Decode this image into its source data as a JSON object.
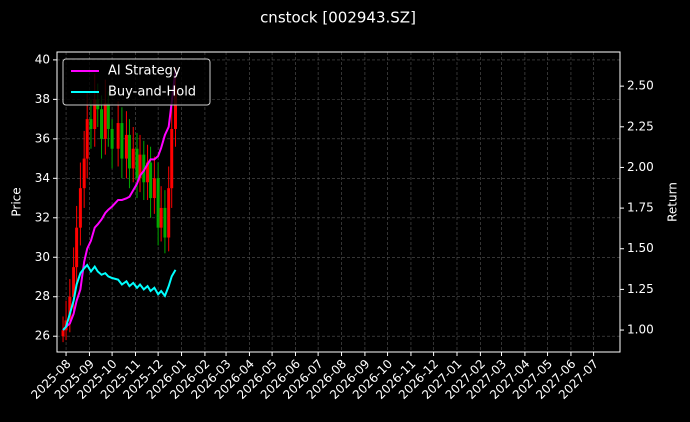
{
  "chart_data": {
    "type": "candlestick",
    "title": "cnstock [002943.SZ]",
    "ylabel": "Price",
    "y2label": "Return",
    "up_color": "#ff0000",
    "down_color": "#00aa00",
    "grid": true,
    "legend": "upper left",
    "x": [
      "2025-07-28",
      "2025-08-01",
      "2025-08-06",
      "2025-08-11",
      "2025-08-15",
      "2025-08-20",
      "2025-08-25",
      "2025-08-29",
      "2025-09-03",
      "2025-09-08",
      "2025-09-12",
      "2025-09-17",
      "2025-09-22",
      "2025-09-26",
      "2025-10-01",
      "2025-10-09",
      "2025-10-14",
      "2025-10-20",
      "2025-10-24",
      "2025-10-29",
      "2025-11-03",
      "2025-11-07",
      "2025-11-12",
      "2025-11-17",
      "2025-11-21",
      "2025-11-26",
      "2025-12-01",
      "2025-12-05",
      "2025-12-10",
      "2025-12-15",
      "2025-12-19",
      "2025-12-24"
    ],
    "open": [
      26.0,
      26.3,
      26.8,
      28.0,
      29.5,
      31.5,
      33.5,
      35.0,
      37.0,
      36.5,
      38.0,
      37.5,
      36.0,
      37.8,
      36.5,
      35.5,
      36.8,
      35.0,
      36.2,
      34.5,
      35.5,
      34.0,
      35.2,
      33.8,
      34.8,
      33.0,
      34.0,
      31.5,
      32.5,
      31.0,
      33.5,
      36.5
    ],
    "close": [
      26.3,
      26.8,
      28.0,
      29.5,
      31.5,
      33.5,
      35.0,
      37.0,
      36.5,
      38.0,
      37.5,
      36.0,
      37.8,
      36.5,
      35.5,
      36.8,
      35.0,
      36.2,
      34.5,
      35.5,
      34.0,
      35.2,
      33.8,
      34.8,
      33.0,
      34.0,
      31.5,
      32.5,
      31.0,
      33.5,
      36.5,
      38.5
    ],
    "high": [
      27.0,
      27.8,
      28.9,
      30.5,
      32.6,
      34.8,
      36.4,
      38.4,
      38.0,
      39.3,
      38.8,
      38.2,
      39.0,
      38.4,
      37.0,
      37.9,
      37.6,
      37.4,
      37.0,
      36.6,
      36.3,
      36.2,
      35.9,
      35.7,
      35.6,
      35.1,
      34.8,
      33.6,
      33.4,
      34.6,
      37.6,
      39.6
    ],
    "low": [
      25.7,
      25.8,
      26.2,
      27.2,
      28.6,
      30.6,
      32.5,
      34.0,
      35.5,
      35.6,
      36.6,
      35.0,
      35.2,
      35.6,
      34.5,
      34.6,
      34.0,
      34.0,
      33.5,
      33.8,
      33.0,
      33.3,
      32.9,
      32.9,
      32.0,
      32.2,
      30.6,
      30.8,
      30.2,
      30.3,
      32.5,
      35.6
    ],
    "xlim": [
      "2025-07-20",
      "2027-08-05"
    ],
    "xticks": [
      "2025-08",
      "2025-09",
      "2025-10",
      "2025-11",
      "2025-12",
      "2026-01",
      "2026-02",
      "2026-03",
      "2026-04",
      "2026-05",
      "2026-06",
      "2026-07",
      "2026-08",
      "2026-09",
      "2026-10",
      "2026-11",
      "2026-12",
      "2027-01",
      "2027-02",
      "2027-03",
      "2027-04",
      "2027-05",
      "2027-06",
      "2027-07"
    ],
    "ylim": [
      25.2,
      40.4
    ],
    "yticks": [
      26,
      28,
      30,
      32,
      34,
      36,
      38,
      40
    ],
    "y2lim": [
      0.865,
      2.71
    ],
    "y2ticks": [
      {
        "value": 1,
        "label": "1.00"
      },
      1.25,
      {
        "value": 1.5,
        "label": "1.50"
      },
      1.75,
      {
        "value": 2,
        "label": "2.00"
      },
      2.25,
      {
        "value": 2.5,
        "label": "2.50"
      }
    ],
    "series": [
      {
        "name": "AI Strategy",
        "color": "#ff00ff",
        "axis": "y2",
        "values": [
          1.0,
          1.02,
          1.04,
          1.1,
          1.18,
          1.25,
          1.42,
          1.5,
          1.55,
          1.63,
          1.65,
          1.68,
          1.72,
          1.74,
          1.76,
          1.8,
          1.8,
          1.81,
          1.82,
          1.86,
          1.9,
          1.95,
          1.98,
          2.02,
          2.05,
          2.05,
          2.07,
          2.12,
          2.2,
          2.25,
          2.4,
          2.6
        ]
      },
      {
        "name": "Buy-and-Hold",
        "color": "#00ffff",
        "axis": "y2",
        "values": [
          1.0,
          1.02,
          1.1,
          1.18,
          1.28,
          1.35,
          1.38,
          1.4,
          1.36,
          1.39,
          1.36,
          1.34,
          1.35,
          1.33,
          1.32,
          1.31,
          1.28,
          1.3,
          1.27,
          1.29,
          1.26,
          1.28,
          1.25,
          1.27,
          1.24,
          1.26,
          1.22,
          1.24,
          1.21,
          1.27,
          1.33,
          1.37
        ]
      }
    ]
  }
}
